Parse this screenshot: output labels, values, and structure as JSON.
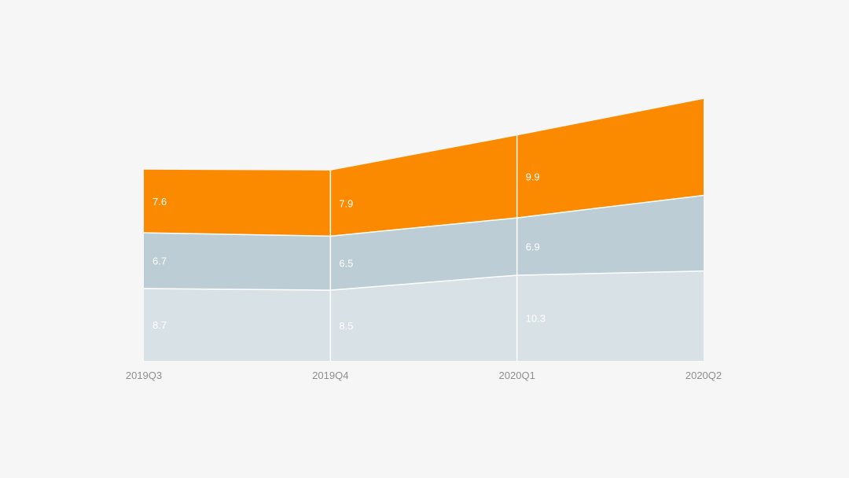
{
  "chart_data": {
    "type": "area",
    "stacked": true,
    "categories": [
      "2019Q3",
      "2019Q4",
      "2020Q1",
      "2020Q2"
    ],
    "series": [
      {
        "values": [
          8.7,
          8.5,
          10.3,
          10.8
        ],
        "color": "#d8e1e6",
        "labels": [
          "8.7",
          "8.5",
          "10.3",
          ""
        ]
      },
      {
        "values": [
          6.7,
          6.5,
          6.9,
          9.1
        ],
        "color": "#bccdd5",
        "labels": [
          "6.7",
          "6.5",
          "6.9",
          ""
        ]
      },
      {
        "values": [
          7.6,
          7.9,
          9.9,
          11.6
        ],
        "color": "#fb8a00",
        "labels": [
          "7.6",
          "7.9",
          "9.9",
          ""
        ]
      }
    ],
    "ylim": [
      0,
      33
    ],
    "grid": false,
    "legend": "none",
    "colors": {
      "background": "#f5f6f5",
      "divider": "#ffffff",
      "tick_text": "#8f8f8f",
      "data_label_text": "#ffffff"
    }
  }
}
